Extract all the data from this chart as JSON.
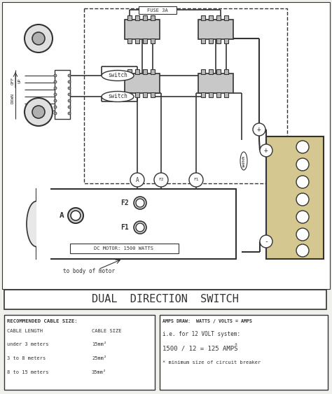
{
  "title": "DUAL  DIRECTION  SWITCH",
  "bg_color": "#f0f0ec",
  "diagram_bg": "#ffffff",
  "line_color": "#333333",
  "text_color": "#333333",
  "table1_title": "RECOMMENDED CABLE SIZE:",
  "table1_col1_header": "CABLE LENGTH",
  "table1_col2_header": "CABLE SIZE",
  "table1_rows": [
    [
      "under 3 meters",
      "15mm²"
    ],
    [
      "3 to 8 meters",
      "25mm²"
    ],
    [
      "8 to 15 meters",
      "35mm²"
    ]
  ],
  "table2_header": "AMPS DRAW:  WATTS / VOLTS = AMPS",
  "table2_line1": "i.e. for 12 VOLT system:",
  "table2_line2a": "1500 / 12 = 125 AMPS",
  "table2_line2b": "*",
  "table2_line3": "* minimum size of circuit breaker",
  "label_fuse": "FUSE 3A",
  "label_switch": "switch",
  "label_A": "A",
  "label_F2": "F2",
  "label_F1": "F1",
  "label_motor": "DC MOTOR: 1500 WATTS",
  "label_body": "to body of motor",
  "label_plus": "+",
  "label_minus": "-",
  "label_off": "OFF",
  "label_up": "UP",
  "label_down": "DOWN"
}
